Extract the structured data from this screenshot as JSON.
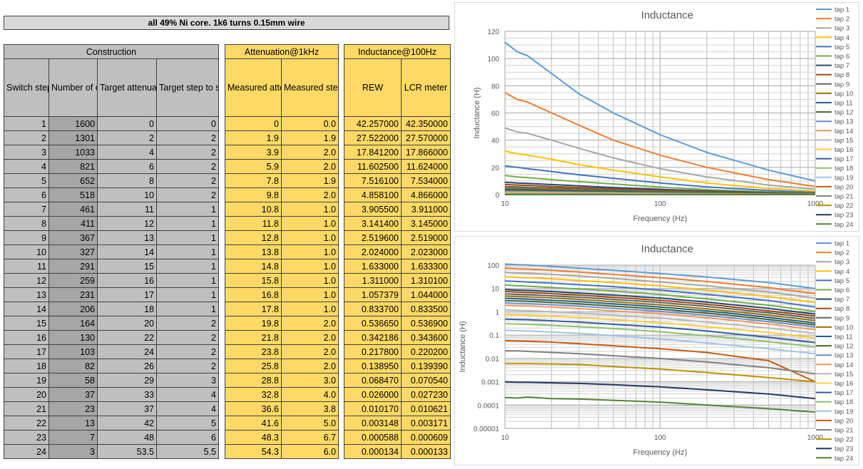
{
  "sheet_title": "all 49% Ni core. 1k6 turns 0.15mm wire",
  "construction": {
    "group_label": "Construction",
    "headers": [
      "Switch step",
      "Number of coil turns",
      "Target attenuation (dB)",
      "Target step to step attenuation"
    ]
  },
  "attenuation": {
    "group_label": "Attenuation@1kHz",
    "headers": [
      "Measured attenuation (dB)",
      "Measured step to step attenuation (dB)"
    ]
  },
  "inductance": {
    "group_label": "Inductance@100Hz",
    "headers": [
      "REW",
      "LCR meter"
    ]
  },
  "rows": [
    [
      "1",
      "1600",
      "0",
      "0",
      "0",
      "0.0",
      "42.257000",
      "42.350000"
    ],
    [
      "2",
      "1301",
      "2",
      "2",
      "1.9",
      "1.9",
      "27.522000",
      "27.570000"
    ],
    [
      "3",
      "1033",
      "4",
      "2",
      "3.9",
      "2.0",
      "17.841200",
      "17.866000"
    ],
    [
      "4",
      "821",
      "6",
      "2",
      "5.9",
      "2.0",
      "11.602500",
      "11.624000"
    ],
    [
      "5",
      "652",
      "8",
      "2",
      "7.8",
      "1.9",
      "7.516100",
      "7.534000"
    ],
    [
      "6",
      "518",
      "10",
      "2",
      "9.8",
      "2.0",
      "4.858100",
      "4.866000"
    ],
    [
      "7",
      "461",
      "11",
      "1",
      "10.8",
      "1.0",
      "3.905500",
      "3.911000"
    ],
    [
      "8",
      "411",
      "12",
      "1",
      "11.8",
      "1.0",
      "3.141400",
      "3.145000"
    ],
    [
      "9",
      "367",
      "13",
      "1",
      "12.8",
      "1.0",
      "2.519600",
      "2.519000"
    ],
    [
      "10",
      "327",
      "14",
      "1",
      "13.8",
      "1.0",
      "2.024000",
      "2.023000"
    ],
    [
      "11",
      "291",
      "15",
      "1",
      "14.8",
      "1.0",
      "1.633000",
      "1.633300"
    ],
    [
      "12",
      "259",
      "16",
      "1",
      "15.8",
      "1.0",
      "1.311000",
      "1.310100"
    ],
    [
      "13",
      "231",
      "17",
      "1",
      "16.8",
      "1.0",
      "1.057379",
      "1.044000"
    ],
    [
      "14",
      "206",
      "18",
      "1",
      "17.8",
      "1.0",
      "0.833700",
      "0.833500"
    ],
    [
      "15",
      "164",
      "20",
      "2",
      "19.8",
      "2.0",
      "0.536650",
      "0.536900"
    ],
    [
      "16",
      "130",
      "22",
      "2",
      "21.8",
      "2.0",
      "0.342186",
      "0.343600"
    ],
    [
      "17",
      "103",
      "24",
      "2",
      "23.8",
      "2.0",
      "0.217800",
      "0.220200"
    ],
    [
      "18",
      "82",
      "26",
      "2",
      "25.8",
      "2.0",
      "0.138950",
      "0.139390"
    ],
    [
      "19",
      "58",
      "29",
      "3",
      "28.8",
      "3.0",
      "0.068470",
      "0.070540"
    ],
    [
      "20",
      "37",
      "33",
      "4",
      "32.8",
      "4.0",
      "0.026000",
      "0.027230"
    ],
    [
      "21",
      "23",
      "37",
      "4",
      "36.6",
      "3.8",
      "0.010170",
      "0.010621"
    ],
    [
      "22",
      "13",
      "42",
      "5",
      "41.6",
      "5.0",
      "0.003148",
      "0.003171"
    ],
    [
      "23",
      "7",
      "48",
      "6",
      "48.3",
      "6.7",
      "0.000588",
      "0.000609"
    ],
    [
      "24",
      "3",
      "53.5",
      "5.5",
      "54.3",
      "6.0",
      "0.000134",
      "0.000133"
    ]
  ],
  "chart_data": [
    {
      "type": "line",
      "title": "Inductance",
      "xlabel": "Frequency (Hz)",
      "ylabel": "Inductance (H)",
      "x_scale": "log",
      "y_scale": "linear",
      "xlim": [
        10,
        1000
      ],
      "ylim": [
        0,
        120
      ],
      "x_ticks": [
        "10",
        "100",
        "1000"
      ],
      "y_ticks": [
        "0",
        "20",
        "40",
        "60",
        "80",
        "100",
        "120"
      ],
      "grid": true,
      "legend": "right",
      "x": [
        10,
        12,
        14,
        20,
        30,
        50,
        100,
        200,
        500,
        1000
      ],
      "series": [
        {
          "name": "tap 1",
          "values": [
            112,
            105,
            102,
            89,
            74,
            60,
            44,
            31,
            18,
            10
          ]
        },
        {
          "name": "tap 2",
          "values": [
            75,
            70,
            68,
            60,
            51,
            40,
            29,
            20,
            11,
            6
          ]
        },
        {
          "name": "tap 3",
          "values": [
            49,
            46,
            45,
            40,
            34,
            27,
            19,
            13,
            7,
            3.9
          ]
        },
        {
          "name": "tap 4",
          "values": [
            32,
            30,
            29,
            26,
            22,
            18,
            13,
            8.5,
            4.5,
            2.5
          ]
        },
        {
          "name": "tap 5",
          "values": [
            21,
            20,
            19,
            17,
            14.5,
            12,
            8.5,
            5.6,
            3,
            1.6
          ]
        },
        {
          "name": "tap 6",
          "values": [
            14,
            13,
            12.5,
            11,
            9.5,
            7.8,
            5.5,
            3.6,
            1.9,
            1.05
          ]
        },
        {
          "name": "tap 7",
          "values": [
            9,
            8.5,
            8.3,
            7.4,
            6.4,
            5.2,
            3.9,
            2.6,
            1.4,
            0.8
          ]
        },
        {
          "name": "tap 8",
          "values": [
            7.4,
            7,
            6.8,
            6,
            5.2,
            4.2,
            3.1,
            2.1,
            1.1,
            0.65
          ]
        },
        {
          "name": "tap 9",
          "values": [
            5.9,
            5.6,
            5.4,
            4.8,
            4.2,
            3.4,
            2.5,
            1.7,
            0.9,
            0.52
          ]
        },
        {
          "name": "tap 10",
          "values": [
            4.7,
            4.5,
            4.4,
            3.9,
            3.4,
            2.7,
            2,
            1.35,
            0.72,
            0.42
          ]
        },
        {
          "name": "tap 11",
          "values": [
            3.8,
            3.6,
            3.5,
            3.1,
            2.7,
            2.2,
            1.6,
            1.1,
            0.58,
            0.33
          ]
        },
        {
          "name": "tap 12",
          "values": [
            3,
            2.9,
            2.8,
            2.5,
            2.2,
            1.75,
            1.3,
            0.88,
            0.47,
            0.27
          ]
        },
        {
          "name": "tap 13",
          "values": [
            2.4,
            2.3,
            2.25,
            2,
            1.75,
            1.4,
            1.05,
            0.7,
            0.38,
            0.22
          ]
        },
        {
          "name": "tap 14",
          "values": [
            1.9,
            1.8,
            1.77,
            1.58,
            1.38,
            1.1,
            0.83,
            0.56,
            0.3,
            0.17
          ]
        },
        {
          "name": "tap 15",
          "values": [
            1.2,
            1.15,
            1.13,
            1.01,
            0.88,
            0.71,
            0.54,
            0.36,
            0.2,
            0.12
          ]
        },
        {
          "name": "tap 16",
          "values": [
            0.77,
            0.74,
            0.72,
            0.65,
            0.57,
            0.46,
            0.34,
            0.23,
            0.13,
            0.075
          ]
        },
        {
          "name": "tap 17",
          "values": [
            0.49,
            0.47,
            0.46,
            0.41,
            0.36,
            0.29,
            0.22,
            0.15,
            0.08,
            0.048
          ]
        },
        {
          "name": "tap 18",
          "values": [
            0.31,
            0.3,
            0.29,
            0.26,
            0.23,
            0.19,
            0.14,
            0.094,
            0.052,
            0.031
          ]
        },
        {
          "name": "tap 19",
          "values": [
            0.16,
            0.155,
            0.15,
            0.135,
            0.118,
            0.095,
            0.068,
            0.046,
            0.026,
            0.016
          ]
        },
        {
          "name": "tap 20",
          "values": [
            0.058,
            0.056,
            0.055,
            0.05,
            0.043,
            0.035,
            0.026,
            0.018,
            0.008,
            0.001
          ]
        },
        {
          "name": "tap 21",
          "values": [
            0.021,
            0.021,
            0.02,
            0.018,
            0.016,
            0.013,
            0.01,
            0.007,
            0.004,
            0.0022
          ]
        },
        {
          "name": "tap 22",
          "values": [
            0.006,
            0.006,
            0.006,
            0.0058,
            0.0055,
            0.0045,
            0.0035,
            0.0025,
            0.0015,
            0.001
          ]
        },
        {
          "name": "tap 23",
          "values": [
            0.001,
            0.00095,
            0.00095,
            0.0009,
            0.00085,
            0.00075,
            0.0006,
            0.00045,
            0.0003,
            0.00019
          ]
        },
        {
          "name": "tap 24",
          "values": [
            0.00021,
            0.0002,
            0.00022,
            0.00019,
            0.00018,
            0.00016,
            0.000134,
            0.0001,
            7e-05,
            5e-05
          ]
        }
      ]
    },
    {
      "type": "line",
      "title": "Inductance",
      "xlabel": "Frequency (Hz)",
      "ylabel": "Inductance (H)",
      "x_scale": "log",
      "y_scale": "log",
      "xlim": [
        10,
        1000
      ],
      "ylim": [
        1e-05,
        100
      ],
      "x_ticks": [
        "10",
        "100",
        "1000"
      ],
      "y_ticks": [
        "0.00001",
        "0.0001",
        "0.001",
        "0.01",
        "0.1",
        "1",
        "10",
        "100"
      ],
      "grid": true,
      "legend": "right",
      "same_series_as_chart": 0
    }
  ],
  "series_colors": [
    "#5b9bd5",
    "#ed7d31",
    "#a5a5a5",
    "#ffc000",
    "#4472c4",
    "#70ad47",
    "#264478",
    "#9e480e",
    "#636363",
    "#997300",
    "#255e91",
    "#43682b",
    "#698ed0",
    "#f1975a",
    "#b7b7b7",
    "#ffcd33",
    "#335aa1",
    "#8cc168",
    "#9dc3e6",
    "#c55a11",
    "#7f7f7f",
    "#bf9000",
    "#203864",
    "#548235"
  ]
}
